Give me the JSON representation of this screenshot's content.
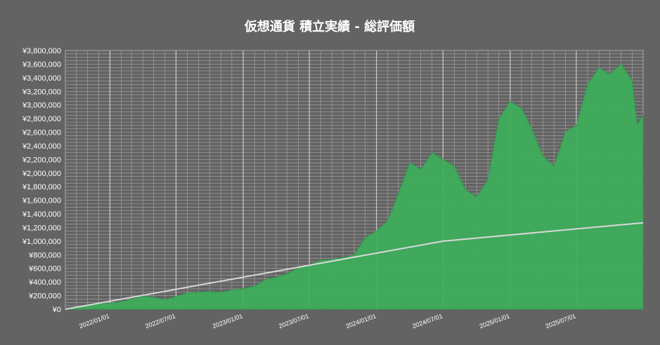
{
  "chart_data": {
    "type": "area",
    "title": "仮想通貨 積立実績 - 総評価額",
    "xlabel": "",
    "ylabel": "",
    "x_range": [
      "2021-09-01",
      "2025-12-31"
    ],
    "ylim": [
      0,
      3800000
    ],
    "y_tick_values": [
      0,
      200000,
      400000,
      600000,
      800000,
      1000000,
      1200000,
      1400000,
      1600000,
      1800000,
      2000000,
      2200000,
      2400000,
      2600000,
      2800000,
      3000000,
      3200000,
      3400000,
      3600000,
      3800000
    ],
    "y_tick_labels": [
      "¥0",
      "¥200,000",
      "¥400,000",
      "¥600,000",
      "¥800,000",
      "¥1,000,000",
      "¥1,200,000",
      "¥1,400,000",
      "¥1,600,000",
      "¥1,800,000",
      "¥2,000,000",
      "¥2,200,000",
      "¥2,400,000",
      "¥2,600,000",
      "¥2,800,000",
      "¥3,000,000",
      "¥3,200,000",
      "¥3,400,000",
      "¥3,600,000",
      "¥3,800,000"
    ],
    "x_tick_dates": [
      "2022-01-01",
      "2022-07-01",
      "2023-01-01",
      "2023-07-01",
      "2024-01-01",
      "2024-07-01",
      "2025-01-01",
      "2025-07-01"
    ],
    "x_tick_labels": [
      "2022/01/01",
      "2022/07/01",
      "2023/01/01",
      "2023/07/01",
      "2024/01/01",
      "2024/07/01",
      "2025/01/01",
      "2025/07/01"
    ],
    "grid": true,
    "colors": {
      "background": "#636363",
      "area": "#3cae5a",
      "line": "#d9d9d9",
      "grid": "#a9a9a9",
      "text": "#ffffff"
    },
    "series": [
      {
        "kind": "area",
        "points": [
          [
            "2021-09-01",
            0
          ],
          [
            "2021-10-01",
            30000
          ],
          [
            "2021-11-01",
            65000
          ],
          [
            "2021-12-01",
            90000
          ],
          [
            "2022-01-01",
            85000
          ],
          [
            "2022-02-01",
            110000
          ],
          [
            "2022-03-01",
            150000
          ],
          [
            "2022-04-01",
            190000
          ],
          [
            "2022-05-01",
            175000
          ],
          [
            "2022-06-01",
            140000
          ],
          [
            "2022-07-01",
            185000
          ],
          [
            "2022-08-01",
            240000
          ],
          [
            "2022-09-01",
            250000
          ],
          [
            "2022-10-01",
            260000
          ],
          [
            "2022-11-01",
            250000
          ],
          [
            "2022-12-01",
            280000
          ],
          [
            "2023-01-01",
            300000
          ],
          [
            "2023-02-01",
            340000
          ],
          [
            "2023-03-01",
            430000
          ],
          [
            "2023-04-01",
            470000
          ],
          [
            "2023-05-01",
            520000
          ],
          [
            "2023-06-01",
            610000
          ],
          [
            "2023-07-01",
            650000
          ],
          [
            "2023-08-01",
            720000
          ],
          [
            "2023-09-01",
            730000
          ],
          [
            "2023-10-01",
            760000
          ],
          [
            "2023-11-01",
            800000
          ],
          [
            "2023-12-01",
            1050000
          ],
          [
            "2024-01-01",
            1150000
          ],
          [
            "2024-02-01",
            1300000
          ],
          [
            "2024-03-01",
            1700000
          ],
          [
            "2024-04-01",
            2150000
          ],
          [
            "2024-05-01",
            2050000
          ],
          [
            "2024-06-01",
            2300000
          ],
          [
            "2024-07-01",
            2200000
          ],
          [
            "2024-08-01",
            2100000
          ],
          [
            "2024-09-01",
            1750000
          ],
          [
            "2024-10-01",
            1650000
          ],
          [
            "2024-11-01",
            1900000
          ],
          [
            "2024-12-01",
            2800000
          ],
          [
            "2025-01-01",
            3050000
          ],
          [
            "2025-02-01",
            2950000
          ],
          [
            "2025-03-01",
            2650000
          ],
          [
            "2025-04-01",
            2250000
          ],
          [
            "2025-05-01",
            2100000
          ],
          [
            "2025-06-01",
            2600000
          ],
          [
            "2025-07-01",
            2700000
          ],
          [
            "2025-08-01",
            3300000
          ],
          [
            "2025-09-01",
            3550000
          ],
          [
            "2025-10-01",
            3450000
          ],
          [
            "2025-11-01",
            3600000
          ],
          [
            "2025-12-01",
            3350000
          ],
          [
            "2025-12-15",
            2700000
          ],
          [
            "2025-12-31",
            2850000
          ]
        ]
      },
      {
        "kind": "line",
        "points": [
          [
            "2021-09-01",
            0
          ],
          [
            "2024-07-01",
            1000000
          ],
          [
            "2025-12-31",
            1270000
          ]
        ]
      }
    ]
  }
}
